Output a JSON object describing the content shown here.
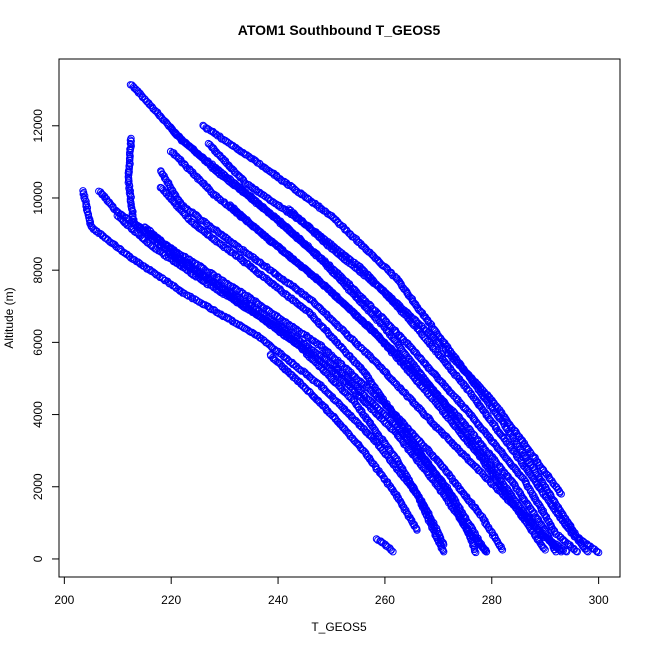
{
  "chart_data": {
    "type": "scatter",
    "title": "ATOM1 Southbound T_GEOS5",
    "xlabel": "T_GEOS5",
    "ylabel": "Altitude (m)",
    "xlim": [
      199,
      304
    ],
    "ylim": [
      -500,
      13850
    ],
    "xticks": [
      200,
      220,
      240,
      260,
      280,
      300
    ],
    "yticks": [
      0,
      2000,
      4000,
      6000,
      8000,
      10000,
      12000
    ],
    "grid": false,
    "marker": "open-circle",
    "color": "#0000ff",
    "series_profiles": [
      {
        "points": [
          [
            212.5,
            13150
          ],
          [
            222,
            11600
          ],
          [
            236,
            9900
          ],
          [
            248,
            8300
          ],
          [
            260,
            6400
          ],
          [
            270,
            4500
          ],
          [
            280,
            2500
          ],
          [
            288,
            900
          ],
          [
            293,
            200
          ]
        ]
      },
      {
        "points": [
          [
            226,
            12000
          ],
          [
            236,
            11000
          ],
          [
            250,
            9500
          ],
          [
            262,
            7800
          ],
          [
            272,
            5800
          ],
          [
            282,
            3800
          ],
          [
            290,
            2000
          ],
          [
            296,
            600
          ],
          [
            300,
            180
          ]
        ]
      },
      {
        "points": [
          [
            203.5,
            10200
          ],
          [
            205,
            9200
          ],
          [
            212,
            8400
          ],
          [
            222,
            7400
          ],
          [
            236,
            6200
          ],
          [
            248,
            4800
          ],
          [
            258,
            3300
          ],
          [
            266,
            1800
          ],
          [
            270,
            500
          ],
          [
            271,
            200
          ]
        ]
      },
      {
        "points": [
          [
            212.5,
            11650
          ],
          [
            212,
            10500
          ],
          [
            213,
            9300
          ],
          [
            222,
            8200
          ],
          [
            236,
            6900
          ],
          [
            250,
            5400
          ],
          [
            262,
            3700
          ],
          [
            272,
            1900
          ],
          [
            278,
            400
          ],
          [
            279,
            200
          ]
        ]
      },
      {
        "points": [
          [
            206.5,
            10200
          ],
          [
            210,
            9600
          ],
          [
            220,
            8600
          ],
          [
            234,
            7300
          ],
          [
            248,
            5900
          ],
          [
            260,
            4300
          ],
          [
            270,
            2700
          ],
          [
            278,
            1200
          ],
          [
            282,
            250
          ]
        ]
      },
      {
        "points": [
          [
            218,
            10750
          ],
          [
            222,
            9800
          ],
          [
            232,
            8700
          ],
          [
            246,
            7200
          ],
          [
            258,
            5500
          ],
          [
            270,
            3600
          ],
          [
            282,
            1800
          ],
          [
            290,
            600
          ],
          [
            294,
            200
          ]
        ]
      },
      {
        "points": [
          [
            220,
            11900
          ],
          [
            228,
            10800
          ],
          [
            240,
            9400
          ],
          [
            252,
            7800
          ],
          [
            264,
            6000
          ],
          [
            276,
            4000
          ],
          [
            286,
            2200
          ],
          [
            292,
            700
          ],
          [
            296,
            200
          ]
        ]
      },
      {
        "points": [
          [
            218,
            10300
          ],
          [
            224,
            9300
          ],
          [
            234,
            8200
          ],
          [
            246,
            6800
          ],
          [
            256,
            5200
          ],
          [
            264,
            3500
          ],
          [
            272,
            1800
          ],
          [
            276,
            600
          ],
          [
            277,
            180
          ]
        ]
      },
      {
        "points": [
          [
            220,
            11300
          ],
          [
            228,
            10100
          ],
          [
            238,
            8900
          ],
          [
            250,
            7400
          ],
          [
            262,
            5700
          ],
          [
            274,
            3900
          ],
          [
            284,
            2100
          ],
          [
            290,
            800
          ],
          [
            292,
            200
          ]
        ]
      },
      {
        "points": [
          [
            227,
            11500
          ],
          [
            234,
            10400
          ],
          [
            244,
            9400
          ],
          [
            256,
            8000
          ],
          [
            266,
            6400
          ],
          [
            276,
            4600
          ],
          [
            286,
            2600
          ],
          [
            294,
            900
          ],
          [
            298,
            200
          ]
        ]
      },
      {
        "points": [
          [
            215,
            9200
          ],
          [
            222,
            8300
          ],
          [
            232,
            7200
          ],
          [
            244,
            5900
          ],
          [
            254,
            4400
          ],
          [
            262,
            2800
          ],
          [
            268,
            1300
          ],
          [
            271,
            400
          ]
        ]
      },
      {
        "points": [
          [
            238.5,
            5650
          ],
          [
            244,
            4900
          ],
          [
            250,
            4000
          ],
          [
            256,
            3000
          ],
          [
            262,
            1800
          ],
          [
            266,
            800
          ]
        ]
      },
      {
        "points": [
          [
            258.5,
            550
          ],
          [
            260,
            400
          ],
          [
            261.5,
            200
          ]
        ]
      },
      {
        "points": [
          [
            231,
            9800
          ],
          [
            237,
            9000
          ],
          [
            247,
            7800
          ],
          [
            258,
            6300
          ],
          [
            268,
            4600
          ],
          [
            278,
            2800
          ],
          [
            286,
            1100
          ],
          [
            290,
            250
          ]
        ]
      },
      {
        "points": [
          [
            210,
            9500
          ],
          [
            216,
            8700
          ],
          [
            226,
            7700
          ],
          [
            240,
            6400
          ],
          [
            252,
            5000
          ],
          [
            262,
            3500
          ],
          [
            270,
            2000
          ],
          [
            276,
            700
          ],
          [
            279,
            200
          ]
        ]
      },
      {
        "points": [
          [
            242,
            9700
          ],
          [
            250,
            8600
          ],
          [
            260,
            7400
          ],
          [
            270,
            6000
          ],
          [
            280,
            4400
          ],
          [
            288,
            2800
          ],
          [
            293,
            1800
          ]
        ]
      }
    ]
  }
}
